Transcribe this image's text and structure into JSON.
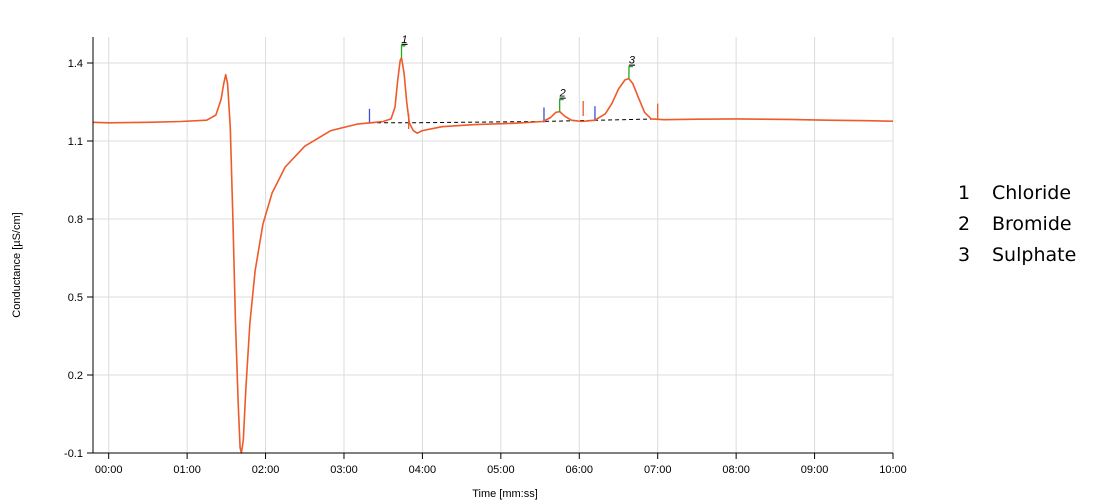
{
  "chart_data": {
    "type": "line",
    "xlabel": "Time [mm:ss]",
    "ylabel": "Conductance [µS/cm]",
    "x_unit": "seconds",
    "xlim": [
      -12,
      600
    ],
    "ylim": [
      -0.1,
      1.5
    ],
    "x_ticks": [
      {
        "t": 0,
        "label": "00:00"
      },
      {
        "t": 60,
        "label": "01:00"
      },
      {
        "t": 120,
        "label": "02:00"
      },
      {
        "t": 180,
        "label": "03:00"
      },
      {
        "t": 240,
        "label": "04:00"
      },
      {
        "t": 300,
        "label": "05:00"
      },
      {
        "t": 360,
        "label": "06:00"
      },
      {
        "t": 420,
        "label": "07:00"
      },
      {
        "t": 480,
        "label": "08:00"
      },
      {
        "t": 540,
        "label": "09:00"
      },
      {
        "t": 600,
        "label": "10:00"
      }
    ],
    "y_ticks": [
      {
        "v": -0.1,
        "label": "-0.1"
      },
      {
        "v": 0.2,
        "label": "0.2"
      },
      {
        "v": 0.5,
        "label": "0.5"
      },
      {
        "v": 0.8,
        "label": "0.8"
      },
      {
        "v": 1.1,
        "label": "1.1"
      },
      {
        "v": 1.4,
        "label": "1.4"
      }
    ],
    "grid": true,
    "series": [
      {
        "color": "#ee5a2a",
        "points": [
          [
            -12,
            1.172
          ],
          [
            0,
            1.17
          ],
          [
            30,
            1.172
          ],
          [
            55,
            1.175
          ],
          [
            75,
            1.18
          ],
          [
            82,
            1.2
          ],
          [
            86,
            1.26
          ],
          [
            88,
            1.32
          ],
          [
            89.5,
            1.355
          ],
          [
            91,
            1.32
          ],
          [
            93,
            1.15
          ],
          [
            95,
            0.8
          ],
          [
            97,
            0.4
          ],
          [
            99,
            0.1
          ],
          [
            100.5,
            -0.08
          ],
          [
            101.5,
            -0.1
          ],
          [
            103,
            -0.05
          ],
          [
            105,
            0.15
          ],
          [
            108,
            0.4
          ],
          [
            112,
            0.6
          ],
          [
            118,
            0.78
          ],
          [
            125,
            0.9
          ],
          [
            135,
            1.0
          ],
          [
            150,
            1.08
          ],
          [
            170,
            1.14
          ],
          [
            190,
            1.165
          ],
          [
            200,
            1.17
          ],
          [
            210,
            1.175
          ],
          [
            216,
            1.185
          ],
          [
            219,
            1.23
          ],
          [
            221,
            1.33
          ],
          [
            223,
            1.41
          ],
          [
            224,
            1.42
          ],
          [
            226,
            1.36
          ],
          [
            228,
            1.25
          ],
          [
            230,
            1.17
          ],
          [
            233,
            1.14
          ],
          [
            236,
            1.13
          ],
          [
            240,
            1.14
          ],
          [
            255,
            1.155
          ],
          [
            280,
            1.163
          ],
          [
            310,
            1.168
          ],
          [
            332,
            1.175
          ],
          [
            338,
            1.19
          ],
          [
            342,
            1.21
          ],
          [
            345,
            1.213
          ],
          [
            349,
            1.195
          ],
          [
            354,
            1.18
          ],
          [
            362,
            1.175
          ],
          [
            372,
            1.18
          ],
          [
            380,
            1.205
          ],
          [
            385,
            1.245
          ],
          [
            390,
            1.3
          ],
          [
            395,
            1.335
          ],
          [
            398,
            1.34
          ],
          [
            401,
            1.32
          ],
          [
            405,
            1.27
          ],
          [
            410,
            1.21
          ],
          [
            415,
            1.185
          ],
          [
            425,
            1.182
          ],
          [
            450,
            1.184
          ],
          [
            480,
            1.185
          ],
          [
            520,
            1.183
          ],
          [
            550,
            1.18
          ],
          [
            580,
            1.178
          ],
          [
            600,
            1.176
          ]
        ]
      }
    ],
    "baselines": [
      {
        "points": [
          [
            200,
            1.17
          ],
          [
            230,
            1.17
          ],
          [
            330,
            1.175
          ],
          [
            375,
            1.18
          ],
          [
            420,
            1.185
          ]
        ]
      }
    ],
    "markers": [
      {
        "t": 199.5,
        "v": 1.17,
        "color": "#3b4fd6"
      },
      {
        "t": 229.5,
        "v": 1.15,
        "color": "#ee5a2a"
      },
      {
        "t": 333,
        "v": 1.175,
        "color": "#3b4fd6"
      },
      {
        "t": 363,
        "v": 1.2,
        "color": "#ee5a2a"
      },
      {
        "t": 372,
        "v": 1.18,
        "color": "#3b4fd6"
      },
      {
        "t": 420,
        "v": 1.19,
        "color": "#ee5a2a"
      }
    ],
    "peaks": [
      {
        "label": "1",
        "t": 224,
        "v": 1.42
      },
      {
        "label": "2",
        "t": 345,
        "v": 1.213
      },
      {
        "label": "3",
        "t": 398,
        "v": 1.34
      }
    ],
    "peak_color": "#22aa22",
    "baseline_color": "#000000",
    "grid_color": "#dcdcdc"
  },
  "legend": {
    "items": [
      {
        "num": "1",
        "name": "Chloride"
      },
      {
        "num": "2",
        "name": "Bromide"
      },
      {
        "num": "3",
        "name": "Sulphate"
      }
    ]
  }
}
